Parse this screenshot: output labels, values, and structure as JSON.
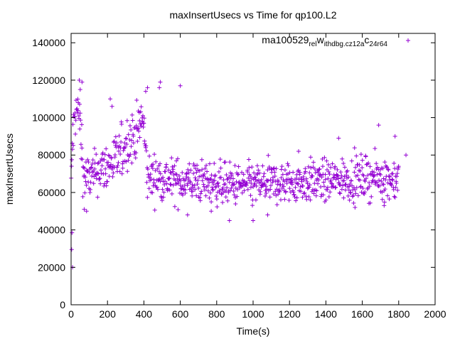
{
  "chart_data": {
    "type": "scatter",
    "title": "maxInsertUsecs vs Time for qp100.L2",
    "xlabel": "Time(s)",
    "ylabel": "maxInsertUsecs",
    "xlim": [
      0,
      2000
    ],
    "ylim": [
      0,
      145000
    ],
    "x_ticks": [
      0,
      200,
      400,
      600,
      800,
      1000,
      1200,
      1400,
      1600,
      1800,
      2000
    ],
    "y_ticks": [
      0,
      20000,
      40000,
      60000,
      80000,
      100000,
      120000,
      140000
    ],
    "grid": false,
    "legend_position": "top-right",
    "legend_parts": [
      "ma100529",
      "rel",
      "w",
      "ithdbg.cz12a",
      "c",
      "24r64"
    ],
    "marker_color": "#9400d3",
    "marker_shape": "plus",
    "series": [
      {
        "sampling_interval_s": 2,
        "profile": [
          [
            0,
            60000,
            15000
          ],
          [
            6,
            85000,
            15000
          ],
          [
            20,
            100000,
            12000
          ],
          [
            40,
            105000,
            12000
          ],
          [
            55,
            90000,
            18000
          ],
          [
            70,
            68000,
            12000
          ],
          [
            110,
            68000,
            12000
          ],
          [
            150,
            72000,
            12000
          ],
          [
            200,
            74000,
            14000
          ],
          [
            260,
            78000,
            14000
          ],
          [
            300,
            86000,
            14000
          ],
          [
            360,
            92000,
            14000
          ],
          [
            395,
            100000,
            14000
          ],
          [
            420,
            68000,
            12000
          ],
          [
            500,
            68000,
            12000
          ],
          [
            560,
            66000,
            12000
          ],
          [
            620,
            66000,
            11000
          ],
          [
            700,
            66000,
            11000
          ],
          [
            800,
            65000,
            11000
          ],
          [
            900,
            64000,
            11000
          ],
          [
            1000,
            64000,
            11000
          ],
          [
            1100,
            65000,
            11000
          ],
          [
            1200,
            65000,
            11000
          ],
          [
            1300,
            66000,
            11000
          ],
          [
            1400,
            66000,
            11000
          ],
          [
            1500,
            67000,
            11000
          ],
          [
            1600,
            68000,
            11000
          ],
          [
            1700,
            68000,
            11000
          ],
          [
            1800,
            67000,
            11000
          ]
        ],
        "outliers": [
          [
            3,
            29500
          ],
          [
            5,
            38500
          ],
          [
            8,
            20000
          ],
          [
            45,
            120000
          ],
          [
            60,
            119000
          ],
          [
            50,
            115000
          ],
          [
            72,
            51000
          ],
          [
            85,
            50000
          ],
          [
            215,
            110000
          ],
          [
            225,
            106000
          ],
          [
            490,
            119000
          ],
          [
            485,
            116000
          ],
          [
            600,
            117000
          ],
          [
            420,
            116000
          ],
          [
            410,
            114000
          ],
          [
            870,
            45000
          ],
          [
            1000,
            45000
          ],
          [
            1080,
            48000
          ],
          [
            1470,
            89000
          ],
          [
            1690,
            96000
          ],
          [
            1780,
            90000
          ],
          [
            1720,
            53000
          ],
          [
            1250,
            82000
          ],
          [
            1840,
            80000
          ],
          [
            1560,
            52000
          ],
          [
            640,
            48000
          ],
          [
            770,
            50000
          ]
        ]
      }
    ]
  }
}
